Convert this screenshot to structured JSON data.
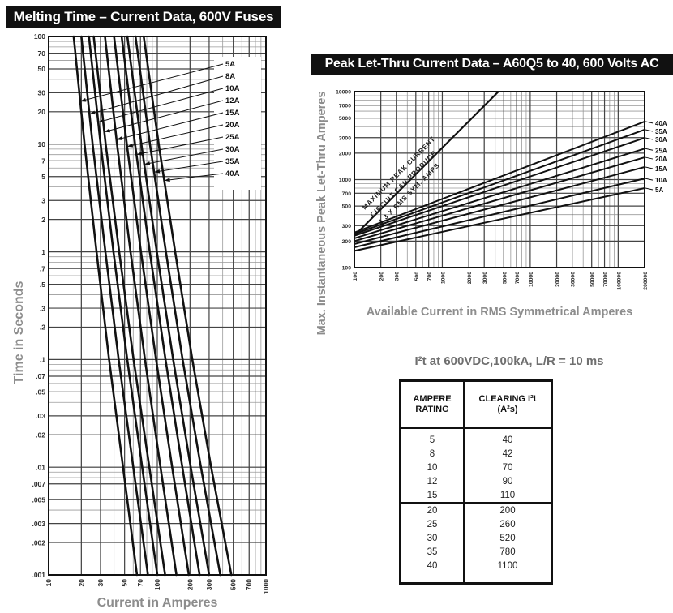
{
  "colors": {
    "title_bar_bg": "#111111",
    "title_bar_text": "#ffffff",
    "axis_label": "#8d8d8d",
    "grid_minor": "#9a9a9a",
    "grid_major": "#444444",
    "curve": "#111111",
    "tick_text": "#2e2e2e",
    "table_border": "#111111"
  },
  "left_chart": {
    "title": "Melting Time – Current  Data, 600V Fuses",
    "xlabel": "Current in Amperes",
    "ylabel": "Time in Seconds"
  },
  "right_chart": {
    "title": "Peak Let-Thru Current Data – A60Q5 to 40, 600 Volts AC",
    "xlabel": "Available Current in RMS Symmetrical Amperes",
    "ylabel": "Max. Instantaneous Peak Let-Thru Amperes"
  },
  "i2t": {
    "heading": "I²t at 600VDC,100kA, L/R = 10 ms",
    "header": {
      "col1": [
        "AMPERE",
        "RATING"
      ],
      "col2": [
        "CLEARING I²t",
        "(A²s)"
      ]
    },
    "rows": [
      [
        "5",
        "40"
      ],
      [
        "8",
        "42"
      ],
      [
        "10",
        "70"
      ],
      [
        "12",
        "90"
      ],
      [
        "15",
        "110"
      ],
      [
        "20",
        "200"
      ],
      [
        "25",
        "260"
      ],
      [
        "30",
        "520"
      ],
      [
        "35",
        "780"
      ],
      [
        "40",
        "1100"
      ]
    ],
    "group_break_index": 5
  },
  "chart_data": [
    {
      "type": "line",
      "title": "Melting Time – Current Data, 600V Fuses",
      "xlabel": "Current in Amperes",
      "ylabel": "Time in Seconds",
      "x_scale": "log",
      "y_scale": "log",
      "xlim": [
        10,
        1000
      ],
      "ylim": [
        0.001,
        100
      ],
      "grid": true,
      "legend_position": "right-callouts",
      "x_ticks": [
        "10",
        "20",
        "30",
        "50",
        "70",
        "100",
        "200",
        "300",
        "500",
        "700",
        "1000"
      ],
      "y_ticks": [
        "100",
        "70",
        "50",
        "30",
        "20",
        "10",
        "7",
        "5",
        "3",
        "2",
        "1",
        ".7",
        ".5",
        ".3",
        ".2",
        ".1",
        ".07",
        ".05",
        ".03",
        ".02",
        ".01",
        ".007",
        ".005",
        ".003",
        ".002",
        ".001"
      ],
      "series": [
        {
          "name": "5A",
          "points": [
            [
              17,
              100
            ],
            [
              21.4,
              10
            ],
            [
              27.6,
              1
            ],
            [
              36,
              0.1
            ],
            [
              48.4,
              0.01
            ],
            [
              65,
              0.001
            ]
          ]
        },
        {
          "name": "8A",
          "points": [
            [
              20,
              100
            ],
            [
              25.4,
              10
            ],
            [
              33.3,
              1
            ],
            [
              44.1,
              0.1
            ],
            [
              60.1,
              0.01
            ],
            [
              82,
              0.001
            ]
          ]
        },
        {
          "name": "10A",
          "points": [
            [
              23.5,
              100
            ],
            [
              30.1,
              10
            ],
            [
              39.5,
              1
            ],
            [
              52.9,
              0.1
            ],
            [
              72.6,
              0.01
            ],
            [
              100,
              0.001
            ]
          ]
        },
        {
          "name": "12A",
          "points": [
            [
              26,
              100
            ],
            [
              33.5,
              10
            ],
            [
              44.6,
              1
            ],
            [
              60.5,
              0.1
            ],
            [
              84.5,
              0.01
            ],
            [
              118,
              0.001
            ]
          ]
        },
        {
          "name": "15A",
          "points": [
            [
              33,
              100
            ],
            [
              42.6,
              10
            ],
            [
              56.7,
              1
            ],
            [
              77,
              0.1
            ],
            [
              107,
              0.01
            ],
            [
              150,
              0.001
            ]
          ]
        },
        {
          "name": "20A",
          "points": [
            [
              40,
              100
            ],
            [
              52.4,
              10
            ],
            [
              70.7,
              1
            ],
            [
              97.5,
              0.1
            ],
            [
              137,
              0.01
            ],
            [
              195,
              0.001
            ]
          ]
        },
        {
          "name": "25A",
          "points": [
            [
              47,
              100
            ],
            [
              62.4,
              10
            ],
            [
              85.3,
              1
            ],
            [
              119,
              0.1
            ],
            [
              170,
              0.01
            ],
            [
              245,
              0.001
            ]
          ]
        },
        {
          "name": "30A",
          "points": [
            [
              53,
              100
            ],
            [
              71.3,
              10
            ],
            [
              99,
              1
            ],
            [
              140,
              0.1
            ],
            [
              203,
              0.01
            ],
            [
              300,
              0.001
            ]
          ]
        },
        {
          "name": "35A",
          "points": [
            [
              63,
              100
            ],
            [
              85.6,
              10
            ],
            [
              120,
              1
            ],
            [
              171,
              0.1
            ],
            [
              252,
              0.01
            ],
            [
              380,
              0.001
            ]
          ]
        },
        {
          "name": "40A",
          "points": [
            [
              75,
              100
            ],
            [
              103,
              10
            ],
            [
              146,
              1
            ],
            [
              210,
              0.1
            ],
            [
              313,
              0.01
            ],
            [
              480,
              0.001
            ]
          ]
        }
      ]
    },
    {
      "type": "line",
      "title": "Peak Let-Thru Current Data – A60Q5 to 40, 600 Volts AC",
      "xlabel": "Available Current in RMS Symmetrical Amperes",
      "ylabel": "Max. Instantaneous Peak Let-Thru Amperes",
      "x_scale": "log",
      "y_scale": "log",
      "xlim": [
        100,
        200000
      ],
      "ylim": [
        100,
        10000
      ],
      "grid": true,
      "legend_position": "right-callouts",
      "x_ticks": [
        "100",
        "200",
        "300",
        "500",
        "700",
        "1000",
        "2000",
        "3000",
        "5000",
        "7000",
        "10000",
        "20000",
        "30000",
        "50000",
        "70000",
        "100000",
        "200000"
      ],
      "y_ticks": [
        "10000",
        "7000",
        "5000",
        "3000",
        "2000",
        "1000",
        "700",
        "500",
        "300",
        "200",
        "100"
      ],
      "annotation": [
        "MAXIMUM PEAK CURRENT",
        "CIRCUIT CAN PRODUCE",
        "2.3 X RMS SYM. AMPS"
      ],
      "max_line": [
        [
          100,
          230
        ],
        [
          4348,
          10000
        ]
      ],
      "series": [
        {
          "name": "40A",
          "points": [
            [
              100,
              250
            ],
            [
              200000,
              4570
            ]
          ]
        },
        {
          "name": "35A",
          "points": [
            [
              100,
              240
            ],
            [
              200000,
              3690
            ]
          ]
        },
        {
          "name": "30A",
          "points": [
            [
              100,
              230
            ],
            [
              200000,
              2980
            ]
          ]
        },
        {
          "name": "25A",
          "points": [
            [
              100,
              215
            ],
            [
              200000,
              2250
            ]
          ]
        },
        {
          "name": "20A",
          "points": [
            [
              100,
              200
            ],
            [
              200000,
              1790
            ]
          ]
        },
        {
          "name": "15A",
          "points": [
            [
              100,
              185
            ],
            [
              200000,
              1390
            ]
          ]
        },
        {
          "name": "10A",
          "points": [
            [
              100,
              170
            ],
            [
              200000,
              1030
            ]
          ]
        },
        {
          "name": "5A",
          "points": [
            [
              100,
              155
            ],
            [
              200000,
              800
            ]
          ]
        }
      ]
    }
  ]
}
